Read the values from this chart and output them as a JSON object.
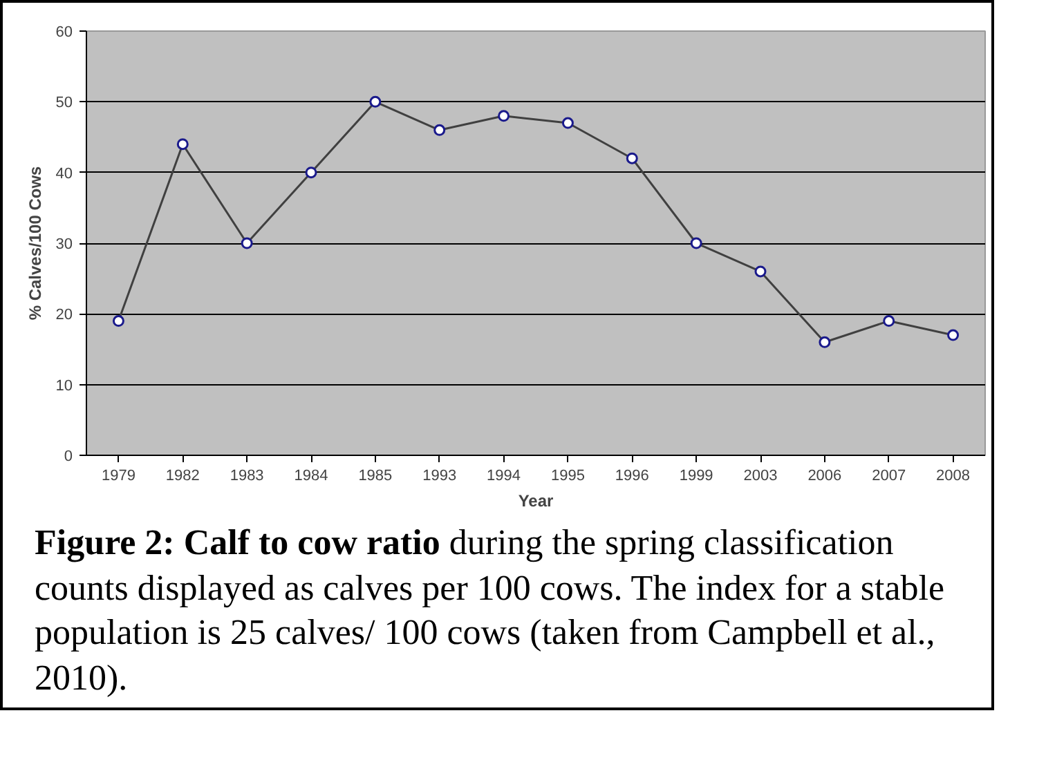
{
  "chart_data": {
    "type": "line",
    "categories": [
      "1979",
      "1982",
      "1983",
      "1984",
      "1985",
      "1993",
      "1994",
      "1995",
      "1996",
      "1999",
      "2003",
      "2006",
      "2007",
      "2008"
    ],
    "values": [
      19,
      44,
      30,
      40,
      50,
      46,
      48,
      47,
      42,
      30,
      26,
      16,
      19,
      17
    ],
    "color": "#404040",
    "marker": "circle",
    "xlabel": "Year",
    "ylabel": "% Calves/100 Cows",
    "ylim": [
      0,
      60
    ],
    "yticks": [
      0,
      10,
      20,
      30,
      40,
      50,
      60
    ],
    "grid": "y",
    "annotations": [
      "Figure 2: Calf to cow ratio",
      "during the spring classification counts displayed as calves per 100 cows. The index for a stable population is 25 calves/ 100 cows (taken from Campbell et al., 2010)."
    ]
  }
}
